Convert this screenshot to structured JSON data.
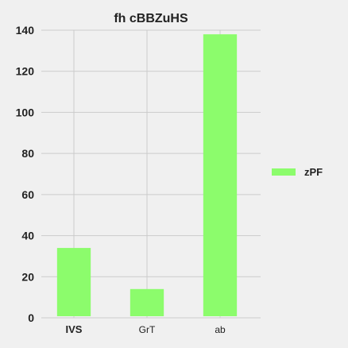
{
  "chart_data": {
    "type": "bar",
    "title": "fh cBBZuHS",
    "categories": [
      "IVS",
      "GrT",
      "ab"
    ],
    "series": [
      {
        "name": "zPF",
        "values": [
          34,
          14,
          138
        ],
        "color": "#8cfc6c"
      }
    ],
    "ylim": [
      0,
      140
    ],
    "yticks": [
      0,
      20,
      40,
      60,
      80,
      100,
      120,
      140
    ],
    "grid": true,
    "legend_position": "right",
    "background": "#f0f0f0",
    "bold_categories": [
      "IVS"
    ]
  }
}
